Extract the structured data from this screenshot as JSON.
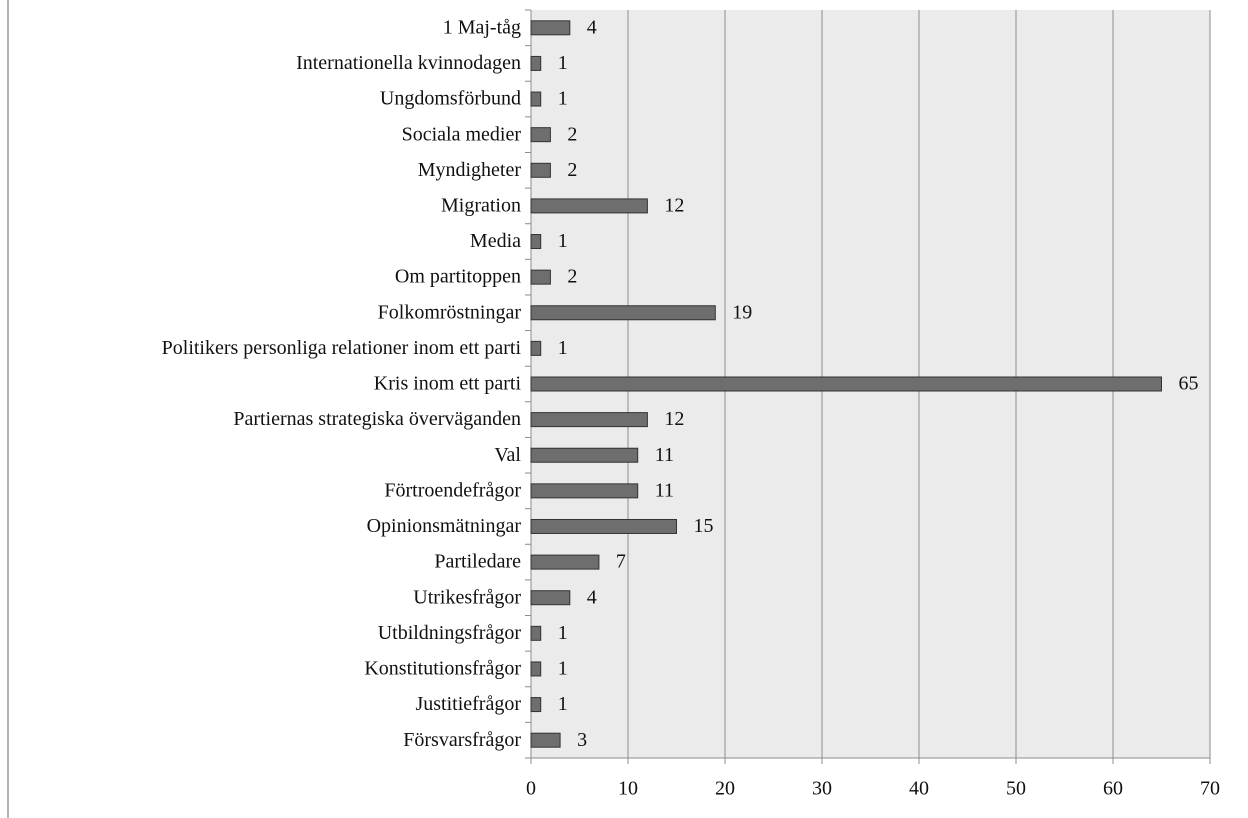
{
  "chart_data": {
    "type": "barh",
    "categories": [
      "1 Maj-tåg",
      "Internationella kvinnodagen",
      "Ungdomsförbund",
      "Sociala medier",
      "Myndigheter",
      "Migration",
      "Media",
      "Om partitoppen",
      "Folkomröstningar",
      "Politikers personliga relationer inom ett parti",
      "Kris inom ett parti",
      "Partiernas strategiska överväganden",
      "Val",
      "Förtroendefrågor",
      "Opinionsmätningar",
      "Partiledare",
      "Utrikesfrågor",
      "Utbildningsfrågor",
      "Konstitutionsfrågor",
      "Justitiefrågor",
      "Försvarsfrågor"
    ],
    "values": [
      4,
      1,
      1,
      2,
      2,
      12,
      1,
      2,
      19,
      1,
      65,
      12,
      11,
      11,
      15,
      7,
      4,
      1,
      1,
      1,
      3
    ],
    "color": "#6e6e6e",
    "xlim": [
      0,
      70
    ],
    "xticks": [
      0,
      10,
      20,
      30,
      40,
      50,
      60,
      70
    ],
    "grid": true
  }
}
